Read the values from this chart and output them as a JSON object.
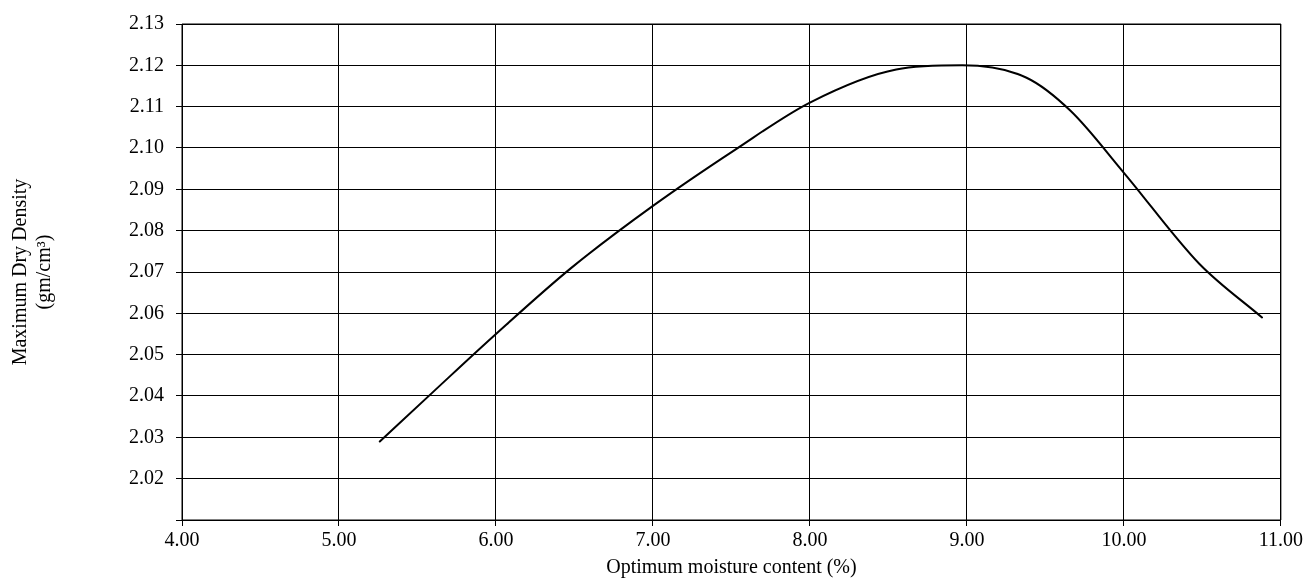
{
  "chart_data": {
    "type": "line",
    "xlabel": "Optimum moisture content (%)",
    "ylabel": "Maximum Dry Density\n(gm/cm³)",
    "series": [
      {
        "color": "#000000",
        "x": [
          5.26,
          5.6,
          6.0,
          6.48,
          7.0,
          7.52,
          8.0,
          8.55,
          8.97,
          9.38,
          9.66,
          10.0,
          10.48,
          10.88
        ],
        "values": [
          2.029,
          2.041,
          2.055,
          2.071,
          2.086,
          2.0995,
          2.111,
          2.119,
          2.12,
          2.117,
          2.109,
          2.094,
          2.072,
          2.059
        ]
      }
    ],
    "xlim": [
      4,
      11
    ],
    "xticks": [
      {
        "value": 4,
        "label": "4.00"
      },
      {
        "value": 5,
        "label": "5.00"
      },
      {
        "value": 6,
        "label": "6.00"
      },
      {
        "value": 7,
        "label": "7.00"
      },
      {
        "value": 8,
        "label": "8.00"
      },
      {
        "value": 9,
        "label": "9.00"
      },
      {
        "value": 10,
        "label": "10.00"
      },
      {
        "value": 11,
        "label": "11.00"
      }
    ],
    "ylim": [
      2.01,
      2.13
    ],
    "yticks": [
      {
        "value": 2.01,
        "label": null
      },
      {
        "value": 2.02,
        "label": "2.02"
      },
      {
        "value": 2.03,
        "label": "2.03"
      },
      {
        "value": 2.04,
        "label": "2.04"
      },
      {
        "value": 2.05,
        "label": "2.05"
      },
      {
        "value": 2.06,
        "label": "2.06"
      },
      {
        "value": 2.07,
        "label": "2.07"
      },
      {
        "value": 2.08,
        "label": "2.08"
      },
      {
        "value": 2.09,
        "label": "2.09"
      },
      {
        "value": 2.1,
        "label": "2.10"
      },
      {
        "value": 2.11,
        "label": "2.11"
      },
      {
        "value": 2.12,
        "label": "2.12"
      },
      {
        "value": 2.13,
        "label": "2.13"
      }
    ],
    "grid": true,
    "legend": false,
    "marker": "none",
    "line_style": "solid"
  }
}
